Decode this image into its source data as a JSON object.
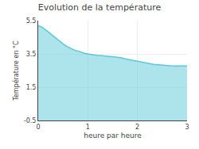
{
  "chart_data": {
    "type": "area",
    "title": "Evolution de la température",
    "xlabel": "heure par heure",
    "ylabel": "Température en °C",
    "x": [
      0.0,
      0.08,
      0.17,
      0.25,
      0.33,
      0.42,
      0.5,
      0.58,
      0.67,
      0.75,
      0.83,
      0.92,
      1.0,
      1.08,
      1.17,
      1.25,
      1.33,
      1.42,
      1.5,
      1.58,
      1.67,
      1.75,
      1.83,
      1.92,
      2.0,
      2.08,
      2.17,
      2.25,
      2.33,
      2.42,
      2.5,
      2.58,
      2.67,
      2.75,
      2.83,
      2.92,
      3.0
    ],
    "values": [
      5.2,
      5.1,
      4.9,
      4.7,
      4.5,
      4.3,
      4.1,
      3.95,
      3.8,
      3.7,
      3.65,
      3.55,
      3.5,
      3.45,
      3.42,
      3.4,
      3.38,
      3.35,
      3.32,
      3.3,
      3.27,
      3.2,
      3.15,
      3.1,
      3.05,
      3.0,
      2.95,
      2.9,
      2.87,
      2.85,
      2.82,
      2.8,
      2.78,
      2.77,
      2.77,
      2.77,
      2.77
    ],
    "color": "#5bc8d8",
    "xlim": [
      0,
      3
    ],
    "ylim": [
      -0.5,
      5.5
    ],
    "xticks": [
      0,
      1,
      2,
      3
    ],
    "yticks": [
      -0.5,
      1.5,
      3.5,
      5.5
    ],
    "grid": true
  }
}
